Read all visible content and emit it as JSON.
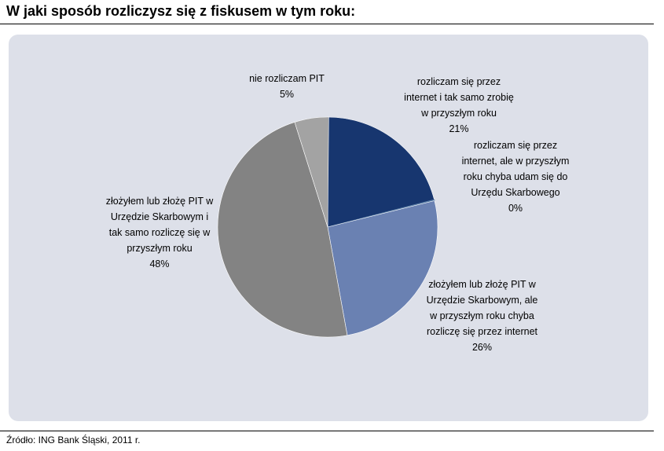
{
  "title": "W jaki sposób rozliczysz się z fiskusem w tym roku:",
  "source": "Źródło: ING Bank Śląski, 2011 r.",
  "chart_data": {
    "type": "pie",
    "title": "",
    "slices": [
      {
        "label": "rozliczam się przez internet i tak samo zrobię w przyszłym roku",
        "value": 21,
        "value_label": "21%",
        "color": "#17366f"
      },
      {
        "label": "rozliczam się przez internet, ale w przyszłym roku chyba udam się do Urzędu Skarbowego",
        "value": 0,
        "value_label": "0%",
        "color": "#5b7fa8"
      },
      {
        "label": "złożyłem lub złożę PIT w Urzędzie Skarbowym, ale w przyszłym roku chyba rozliczę się przez internet",
        "value": 26,
        "value_label": "26%",
        "color": "#6a81b2"
      },
      {
        "label": "złożyłem lub złożę PIT w Urzędzie Skarbowym i tak samo rozliczę się w przyszłym roku",
        "value": 48,
        "value_label": "48%",
        "color": "#838383"
      },
      {
        "label": "nie rozliczam PIT",
        "value": 5,
        "value_label": "5%",
        "color": "#a3a3a3"
      }
    ]
  },
  "labels": {
    "s0": "rozliczam się przez\ninternet i tak samo zrobię\nw przyszłym roku\n21%",
    "s1": "rozliczam się przez\ninternet, ale w przyszłym\nroku chyba udam się do\nUrzędu Skarbowego\n0%",
    "s2": "złożyłem lub złożę PIT w\nUrzędzie Skarbowym, ale\nw przyszłym roku chyba\nrozliczę się przez internet\n26%",
    "s3": "złożyłem lub złożę PIT w\nUrzędzie Skarbowym i\ntak samo rozliczę się w\nprzyszłym roku\n48%",
    "s4": "nie rozliczam PIT\n5%"
  }
}
